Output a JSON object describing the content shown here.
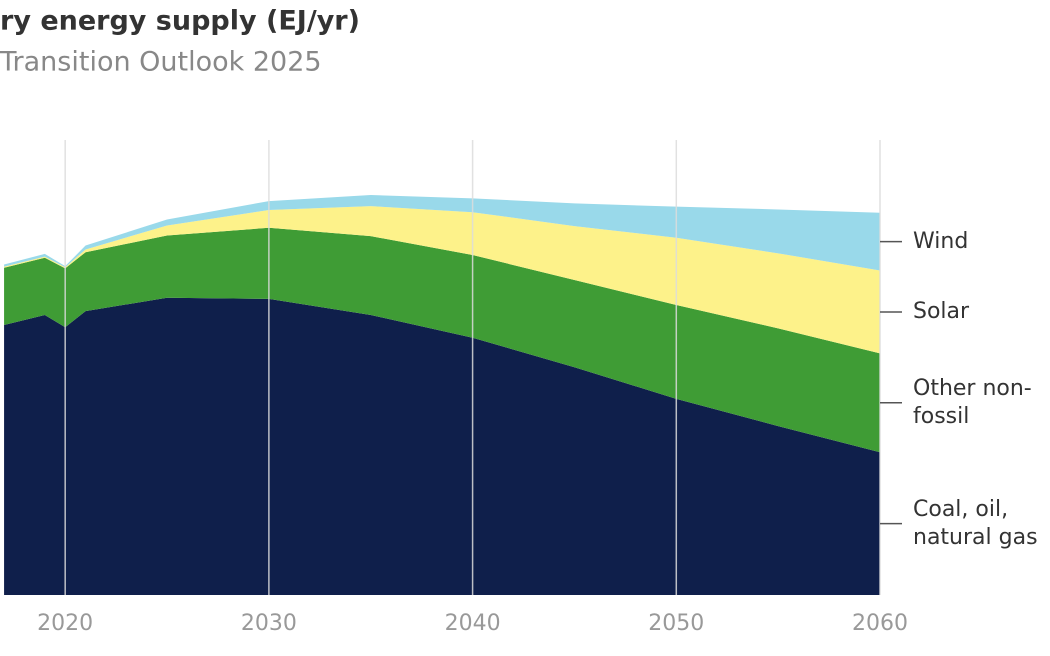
{
  "chart_data": {
    "type": "stacked-area",
    "title": "ry energy supply (EJ/yr)",
    "subtitle": "Transition Outlook 2025",
    "x": [
      2017,
      2019,
      2020,
      2021,
      2025,
      2030,
      2035,
      2040,
      2045,
      2050,
      2055,
      2060
    ],
    "xlim": [
      2016.8,
      2060
    ],
    "xticks": [
      2020,
      2030,
      2040,
      2050,
      2060
    ],
    "ylim": [
      0,
      819
    ],
    "grid": true,
    "series": [
      {
        "name": "Coal, oil, natural gas",
        "color": "#0f1f4b",
        "values": [
          486,
          504,
          482,
          511,
          535,
          533,
          504,
          463,
          410,
          353,
          304,
          257
        ]
      },
      {
        "name": "Other non-fossil",
        "color": "#3f9c35",
        "values": [
          103,
          103,
          106,
          106,
          112,
          128,
          142,
          149,
          157,
          169,
          176,
          178
        ]
      },
      {
        "name": "Solar",
        "color": "#fdf28a",
        "values": [
          2,
          2,
          2,
          5,
          18,
          32,
          54,
          77,
          97,
          121,
          135,
          149
        ]
      },
      {
        "name": "Wind",
        "color": "#99d9ea",
        "values": [
          4,
          5,
          2,
          7,
          11,
          16,
          20,
          25,
          41,
          56,
          79,
          104
        ]
      }
    ]
  }
}
